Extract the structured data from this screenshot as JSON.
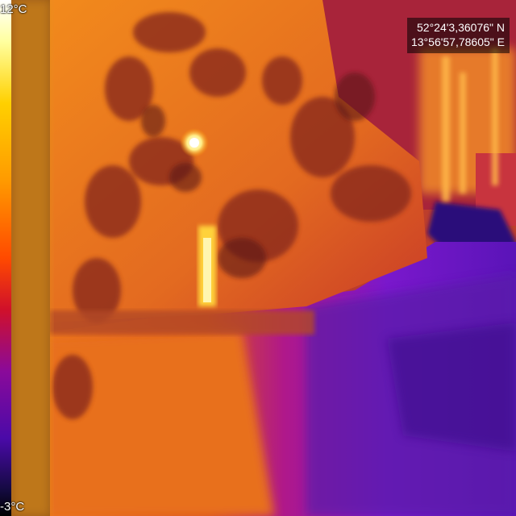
{
  "overlay": {
    "temp_max": "12°C",
    "temp_min": "-3°C",
    "latitude": "52°24'3,36076\" N",
    "longitude": "13°56'57,78605\" E"
  },
  "palette": {
    "scale": [
      "#ffffff",
      "#ffff66",
      "#ffd000",
      "#ff9a00",
      "#ff5a00",
      "#e41c1c",
      "#b0107a",
      "#6a10c0",
      "#2a0a70",
      "#000000"
    ],
    "warm": "#f08a1c",
    "cool": "#6a1cd8"
  },
  "image": {
    "description_icon": "thermal-camera-view"
  }
}
